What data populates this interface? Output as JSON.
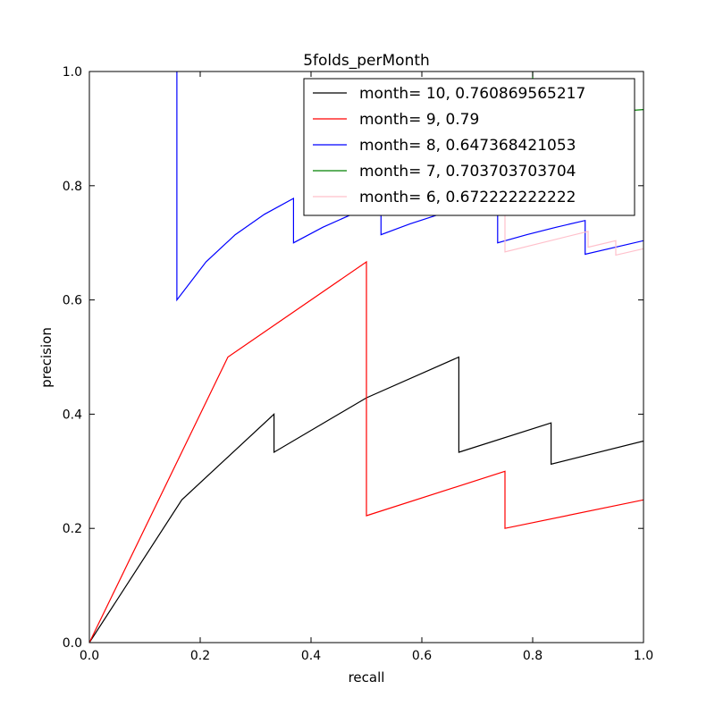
{
  "chart_data": {
    "type": "line",
    "title": "5folds_perMonth",
    "xlabel": "recall",
    "ylabel": "precision",
    "xlim": [
      0.0,
      1.0
    ],
    "ylim": [
      0.0,
      1.0
    ],
    "xticks": [
      "0.0",
      "0.2",
      "0.4",
      "0.6",
      "0.8",
      "1.0"
    ],
    "yticks": [
      "0.0",
      "0.2",
      "0.4",
      "0.6",
      "0.8",
      "1.0"
    ],
    "grid": false,
    "legend_position": "top-right",
    "series": [
      {
        "name": "month= 10, 0.760869565217",
        "color": "#000000",
        "points": [
          [
            0.0,
            0.0
          ],
          [
            0.1667,
            0.25
          ],
          [
            0.3333,
            0.4
          ],
          [
            0.3333,
            0.3333
          ],
          [
            0.5,
            0.4286
          ],
          [
            0.6667,
            0.5
          ],
          [
            0.6667,
            0.3333
          ],
          [
            0.8333,
            0.3846
          ],
          [
            0.8333,
            0.3125
          ],
          [
            1.0,
            0.3529
          ]
        ]
      },
      {
        "name": "month= 9, 0.79",
        "color": "#ff0000",
        "points": [
          [
            0.0,
            0.0
          ],
          [
            0.25,
            0.5
          ],
          [
            0.5,
            0.6667
          ],
          [
            0.5,
            0.2222
          ],
          [
            0.75,
            0.3
          ],
          [
            0.75,
            0.2
          ],
          [
            1.0,
            0.25
          ]
        ]
      },
      {
        "name": "month= 8, 0.647368421053",
        "color": "#0000ff",
        "points": [
          [
            0.1579,
            1.0
          ],
          [
            0.1579,
            0.6
          ],
          [
            0.2105,
            0.6667
          ],
          [
            0.2632,
            0.7143
          ],
          [
            0.3158,
            0.75
          ],
          [
            0.3684,
            0.7778
          ],
          [
            0.3684,
            0.7
          ],
          [
            0.4211,
            0.7273
          ],
          [
            0.4737,
            0.75
          ],
          [
            0.5263,
            0.7692
          ],
          [
            0.5263,
            0.7143
          ],
          [
            0.5789,
            0.7333
          ],
          [
            0.6316,
            0.75
          ],
          [
            0.7368,
            0.7778
          ],
          [
            0.7368,
            0.7
          ],
          [
            0.7895,
            0.7143
          ],
          [
            0.8421,
            0.7273
          ],
          [
            0.8947,
            0.7391
          ],
          [
            0.8947,
            0.68
          ],
          [
            1.0,
            0.7037
          ]
        ]
      },
      {
        "name": "month= 7, 0.703703703704",
        "color": "#008000",
        "points": [
          [
            0.6296,
            1.0
          ],
          [
            0.6296,
            1.05
          ],
          [
            0.8,
            1.05
          ],
          [
            0.8,
            0.95
          ],
          [
            0.95,
            0.93
          ],
          [
            1.0,
            0.9333
          ]
        ]
      },
      {
        "name": "month= 6, 0.672222222222",
        "color": "#ffc0cb",
        "points": [
          [
            0.75,
            0.78
          ],
          [
            0.75,
            0.6842
          ],
          [
            0.9,
            0.72
          ],
          [
            0.9,
            0.6923
          ],
          [
            0.95,
            0.7037
          ],
          [
            0.95,
            0.6786
          ],
          [
            1.0,
            0.6897
          ]
        ]
      }
    ]
  }
}
